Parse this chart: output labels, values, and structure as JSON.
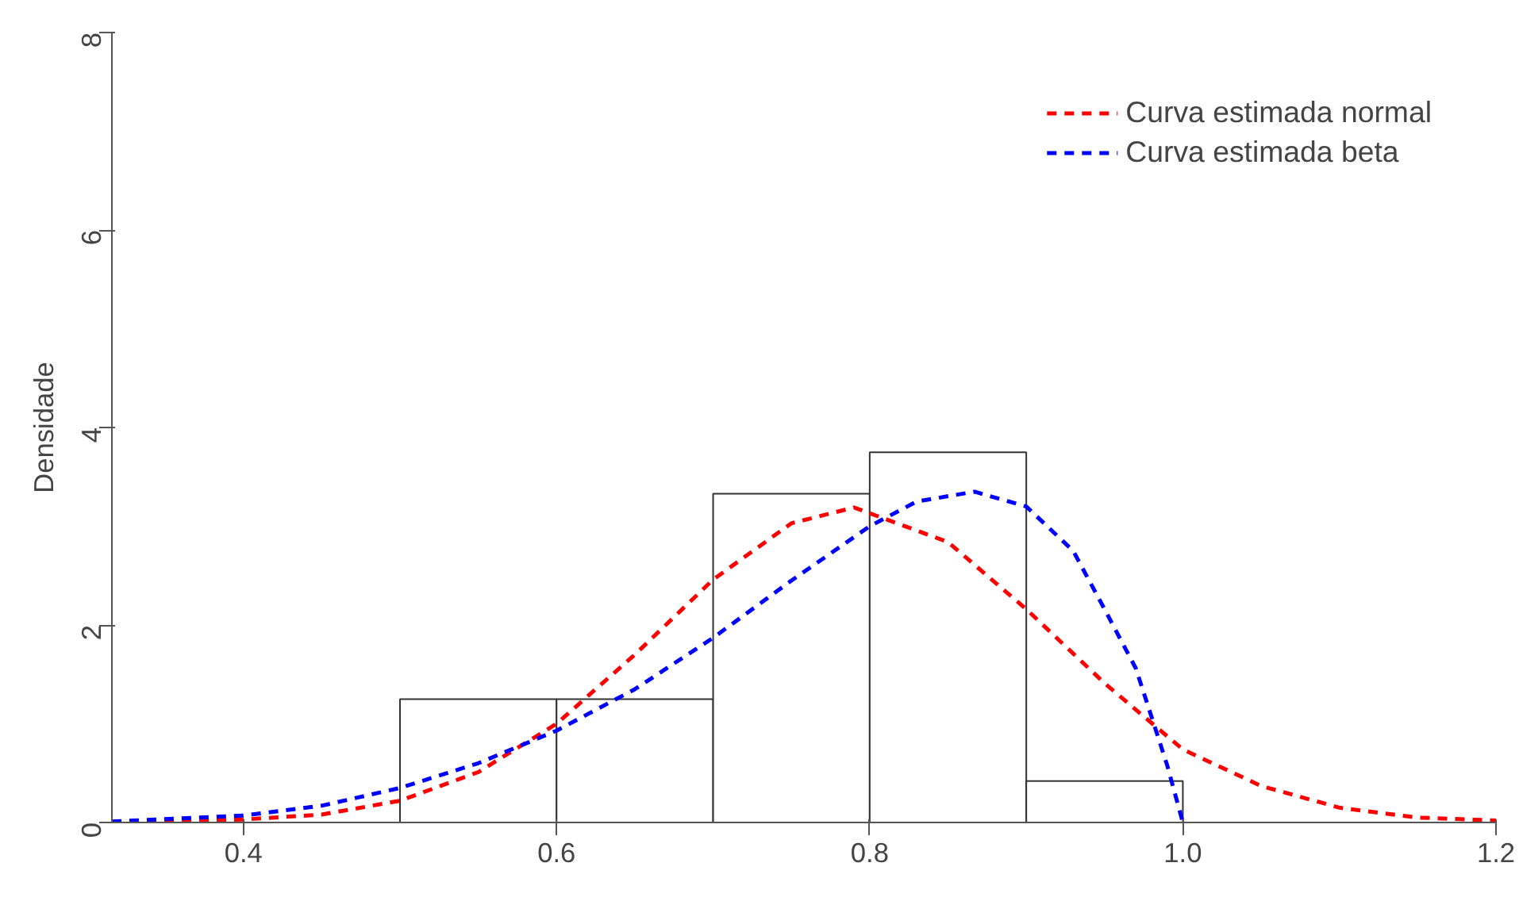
{
  "chart_data": {
    "type": "histogram",
    "ylabel": "Densidade",
    "bins": [
      0.5,
      0.6,
      0.7,
      0.8,
      0.9,
      1.0
    ],
    "values": [
      1.25,
      1.25,
      3.33,
      3.75,
      0.42
    ],
    "series": [
      {
        "type": "line",
        "name": "Curva estimada normal",
        "color": "#ff0000",
        "x": [
          0.316,
          0.35,
          0.4,
          0.45,
          0.5,
          0.55,
          0.6,
          0.65,
          0.7,
          0.75,
          0.79,
          0.85,
          0.9,
          0.95,
          1.0,
          1.05,
          1.1,
          1.15,
          1.2
        ],
        "values": [
          0.0,
          0.01,
          0.03,
          0.08,
          0.22,
          0.51,
          1.0,
          1.7,
          2.46,
          3.03,
          3.19,
          2.84,
          2.16,
          1.41,
          0.74,
          0.37,
          0.15,
          0.05,
          0.02
        ]
      },
      {
        "type": "line",
        "name": "Curva estimada beta",
        "color": "#0000ff",
        "x": [
          0.316,
          0.4,
          0.45,
          0.5,
          0.55,
          0.6,
          0.65,
          0.7,
          0.75,
          0.8,
          0.83,
          0.867,
          0.9,
          0.93,
          0.95,
          0.97,
          0.99,
          1.0
        ],
        "values": [
          0.01,
          0.07,
          0.17,
          0.35,
          0.6,
          0.93,
          1.35,
          1.87,
          2.45,
          3.0,
          3.25,
          3.35,
          3.2,
          2.75,
          2.16,
          1.56,
          0.58,
          0.0
        ]
      }
    ],
    "xlim": [
      0.316,
      1.2
    ],
    "ylim": [
      0,
      8
    ],
    "xticks": [
      0.4,
      0.6,
      0.8,
      {
        "value": 1,
        "label": "1.0"
      },
      1.2
    ],
    "yticks": [
      0,
      2,
      4,
      6,
      8
    ],
    "grid": false,
    "legend": "top right",
    "line_style": "dashed",
    "marker": "none"
  }
}
